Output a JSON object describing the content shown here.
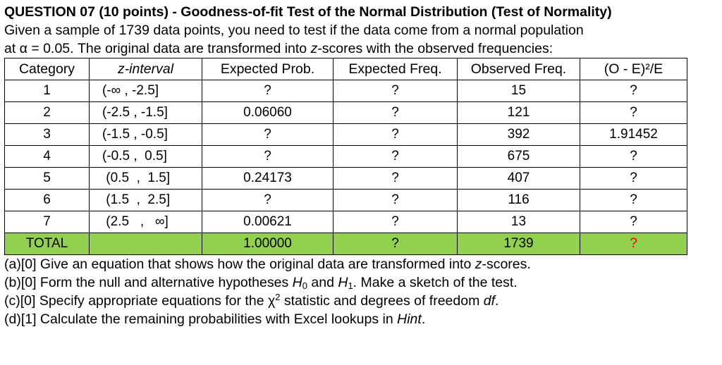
{
  "header": {
    "title": "QUESTION 07 (10 points) - Goodness-of-fit Test of the Normal Distribution (Test of Normality)",
    "line1": "Given a sample of 1739 data points, you need to test if the data come from a normal population",
    "line2_a": "at α = 0.05. The original data are transformed into ",
    "line2_z": "z",
    "line2_b": "-scores with the observed frequencies:"
  },
  "table": {
    "columns": [
      "Category",
      "z-interval",
      "Expected Prob.",
      "Expected Freq.",
      "Observed Freq.",
      "(O - E)²/E"
    ],
    "rows": [
      {
        "cat": "1",
        "z": "(-∞ , -2.5]",
        "p": "?",
        "ef": "?",
        "of": "15",
        "chi": "?"
      },
      {
        "cat": "2",
        "z": "(-2.5 , -1.5]",
        "p": "0.06060",
        "ef": "?",
        "of": "121",
        "chi": "?"
      },
      {
        "cat": "3",
        "z": "(-1.5 , -0.5]",
        "p": "?",
        "ef": "?",
        "of": "392",
        "chi": "1.91452"
      },
      {
        "cat": "4",
        "z": "(-0.5 ,  0.5]",
        "p": "?",
        "ef": "?",
        "of": "675",
        "chi": "?"
      },
      {
        "cat": "5",
        "z": " (0.5  ,  1.5]",
        "p": "0.24173",
        "ef": "?",
        "of": "407",
        "chi": "?"
      },
      {
        "cat": "6",
        "z": " (1.5  ,  2.5]",
        "p": "?",
        "ef": "?",
        "of": "116",
        "chi": "?"
      },
      {
        "cat": "7",
        "z": " (2.5   ,   ∞]",
        "p": "0.00621",
        "ef": "?",
        "of": "13",
        "chi": "?"
      }
    ],
    "total": {
      "label": "TOTAL",
      "p": "1.00000",
      "ef": "?",
      "of": "1739",
      "chi": "?"
    },
    "total_fill": "#92d050",
    "red_mark": "#ff0000"
  },
  "questions": {
    "a_pre": "(a)[0] Give an equation that shows how the original data are transformed into ",
    "a_z": "z",
    "a_post": "-scores.",
    "b_pre": "(b)[0] Form the null and alternative hypotheses ",
    "b_h0": "H",
    "b_h0_sub": "0",
    "b_and": " and ",
    "b_h1": "H",
    "b_h1_sub": "1",
    "b_post": ". Make a sketch of the test.",
    "c_pre": "(c)[0] Specify appropriate equations for the χ",
    "c_sup": "2",
    "c_mid": " statistic and degrees of freedom ",
    "c_df": "df",
    "c_post": ".",
    "d_pre": "(d)[1] Calculate the remaining probabilities with Excel lookups in ",
    "d_hint": "Hint",
    "d_post": "."
  }
}
